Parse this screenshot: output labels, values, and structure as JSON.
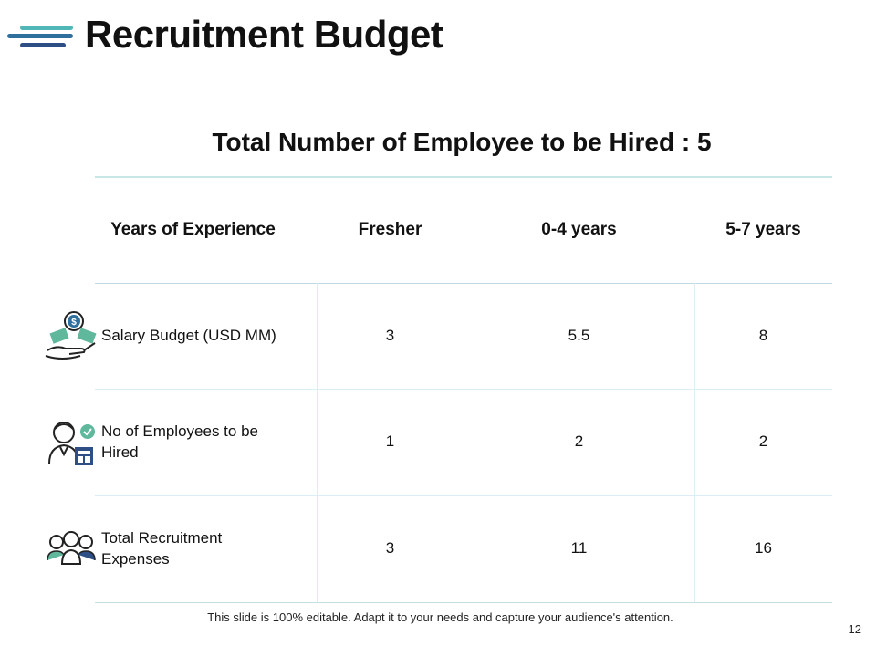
{
  "slide": {
    "title": "Recruitment Budget",
    "subtitle": "Total Number of Employee to be Hired : 5",
    "footer_note": "This slide is 100% editable. Adapt it to your needs and capture your audience's attention.",
    "page_number": "12"
  },
  "colors": {
    "accent_teal": "#4fb8b6",
    "accent_blue": "#2f6f9e",
    "accent_navy": "#2d4f86",
    "icon_dark": "#222222",
    "table_line": "#bfe3e2"
  },
  "table": {
    "headers": [
      "Years of Experience",
      "Fresher",
      "0-4 years",
      "5-7 years"
    ],
    "rows": [
      {
        "label": "Salary Budget (USD MM)",
        "icon": "money-hand-icon",
        "values": [
          "3",
          "5.5",
          "8"
        ]
      },
      {
        "label": "No of Employees to be Hired",
        "icon": "employee-check-icon",
        "values": [
          "1",
          "2",
          "2"
        ]
      },
      {
        "label": "Total Recruitment Expenses",
        "icon": "team-people-icon",
        "values": [
          "3",
          "11",
          "16"
        ]
      }
    ]
  }
}
